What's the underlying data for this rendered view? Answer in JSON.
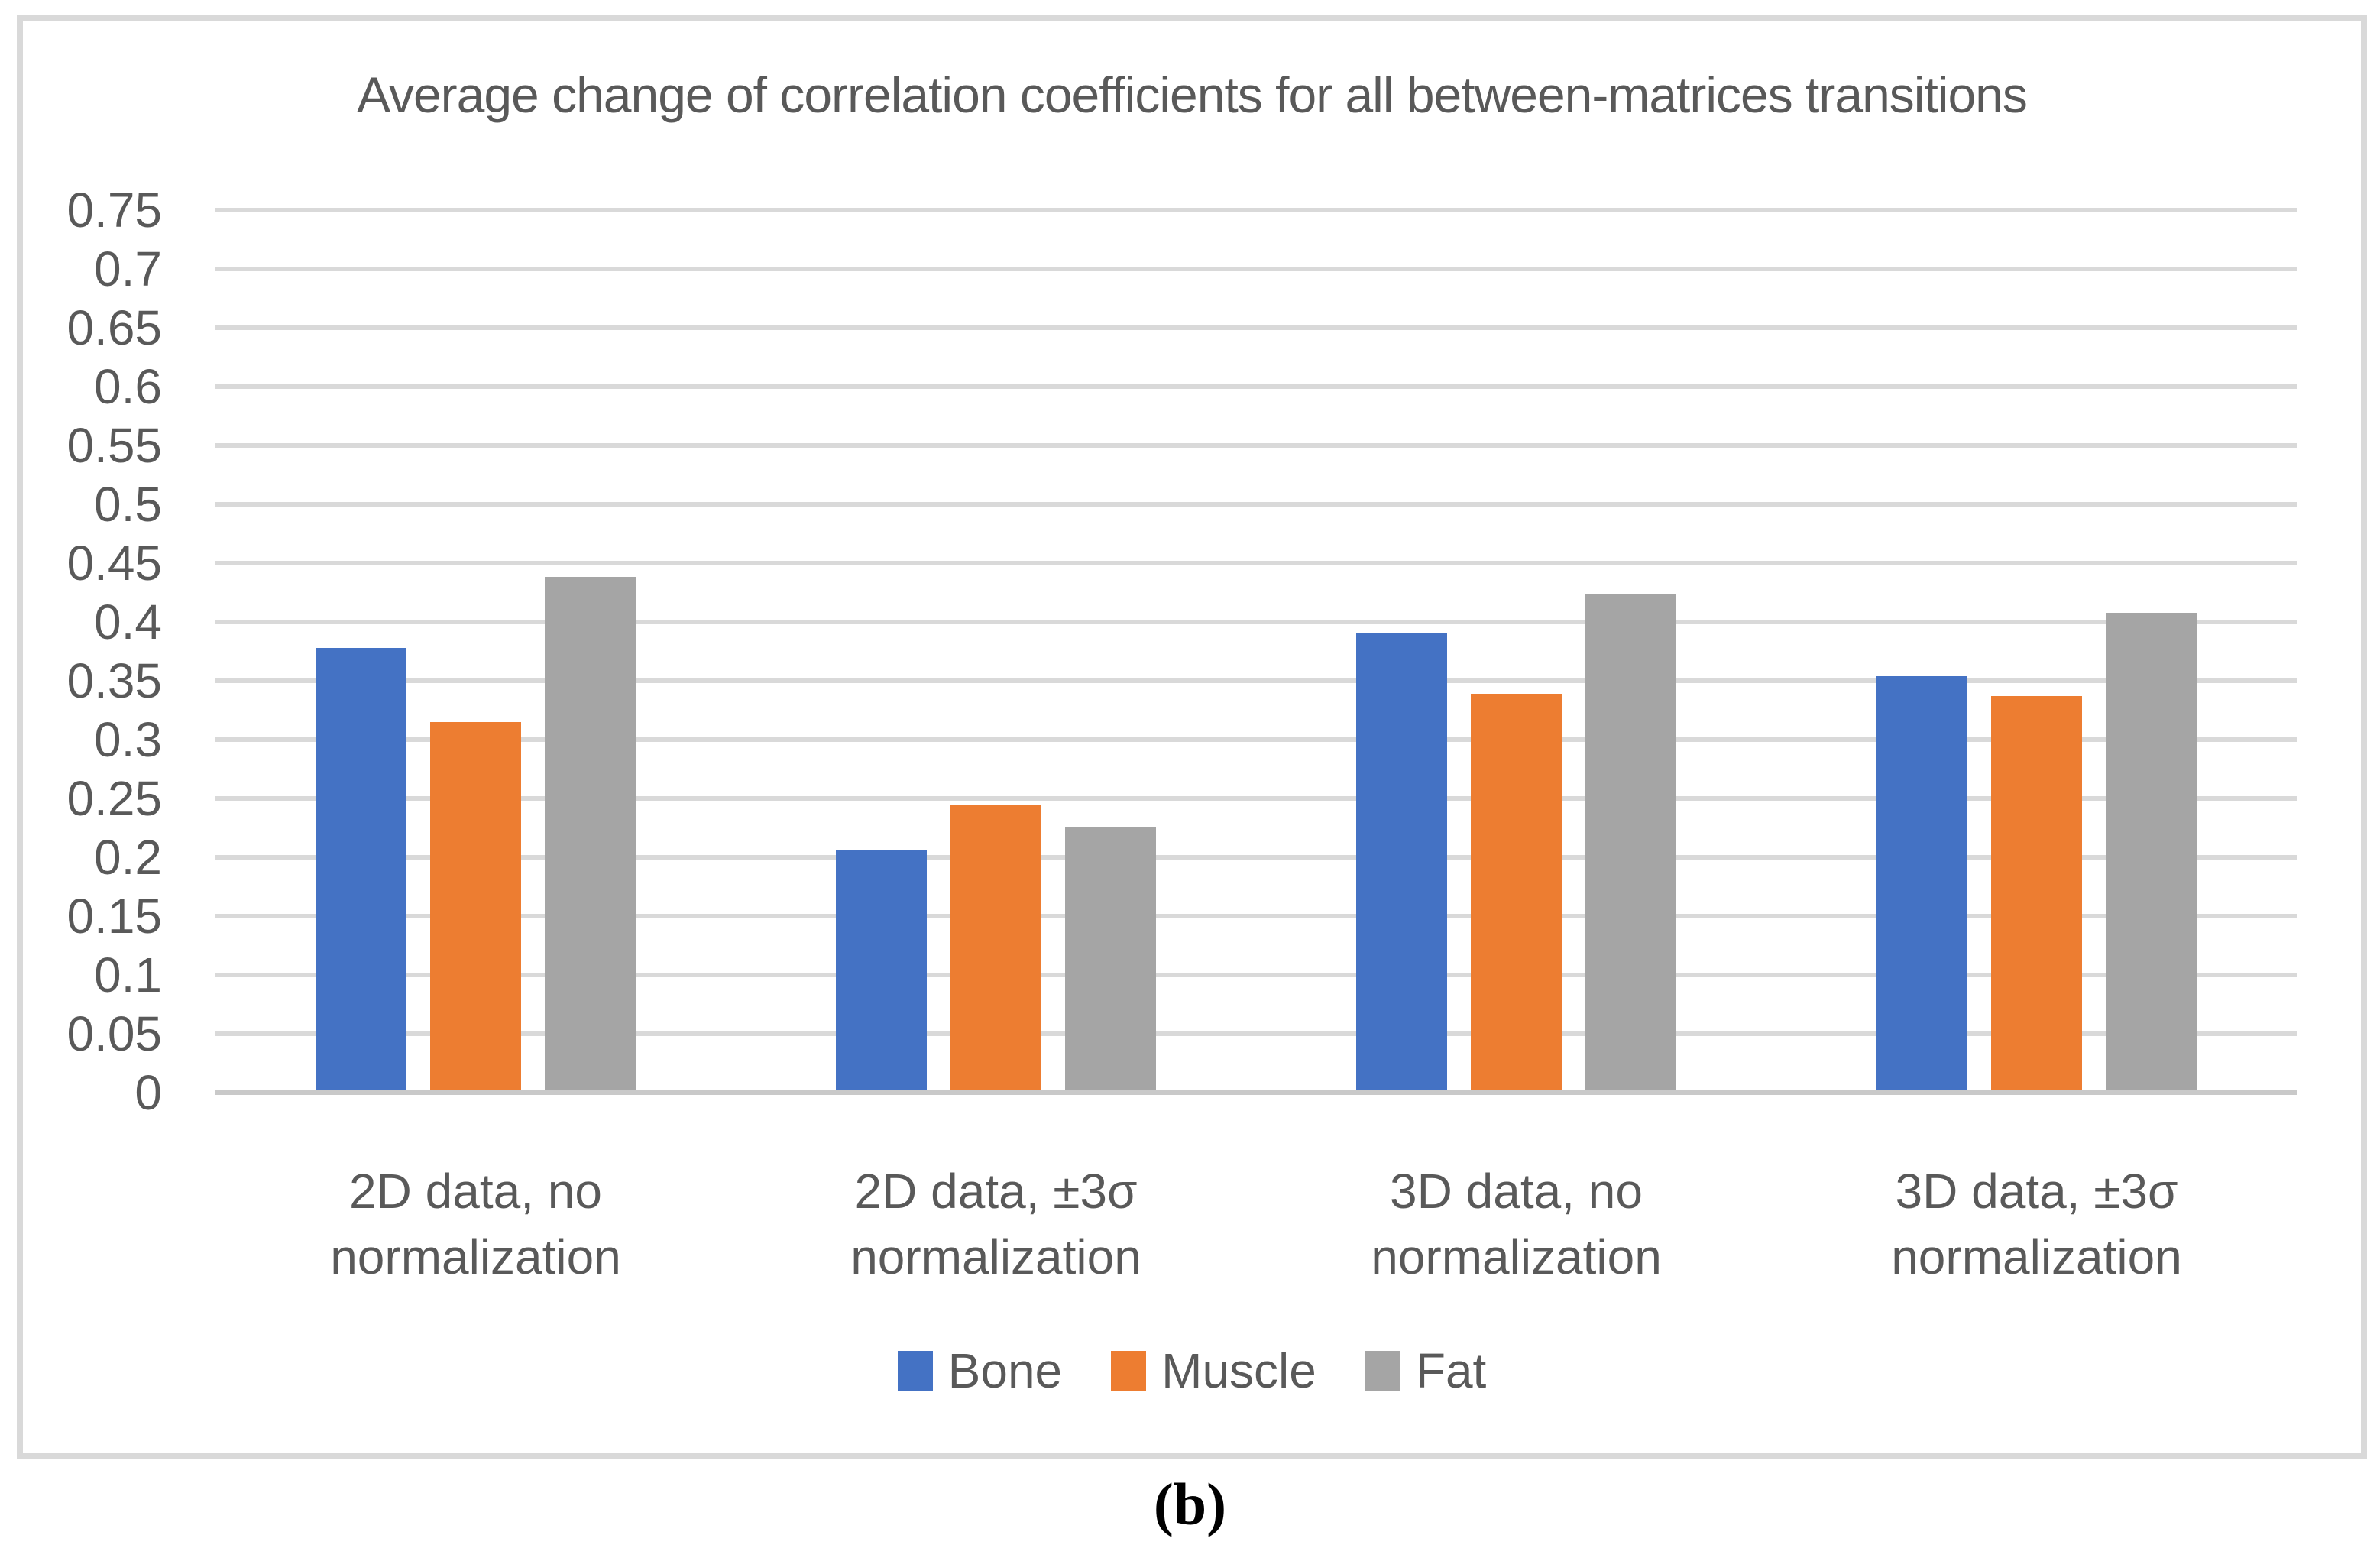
{
  "figure": {
    "caption": "(b)"
  },
  "chart_data": {
    "type": "bar",
    "title": "Average change of correlation coefficients for all between-matrices transitions",
    "categories": [
      "2D data, no\nnormalization",
      "2D data, ±3σ\nnormalization",
      "3D data, no\nnormalization",
      "3D data, ±3σ\nnormalization"
    ],
    "series": [
      {
        "name": "Bone",
        "color": "#4472C4",
        "values": [
          0.378,
          0.206,
          0.39,
          0.354
        ]
      },
      {
        "name": "Muscle",
        "color": "#ED7D31",
        "values": [
          0.315,
          0.244,
          0.339,
          0.337
        ]
      },
      {
        "name": "Fat",
        "color": "#A5A5A5",
        "values": [
          0.438,
          0.226,
          0.424,
          0.408
        ]
      }
    ],
    "ylim": [
      0,
      0.75
    ],
    "ytick_step": 0.05,
    "ytick_labels": [
      "0",
      "0.05",
      "0.1",
      "0.15",
      "0.2",
      "0.25",
      "0.3",
      "0.35",
      "0.4",
      "0.45",
      "0.5",
      "0.55",
      "0.6",
      "0.65",
      "0.7",
      "0.75"
    ],
    "grid": true,
    "legend_position": "bottom",
    "colors": {
      "text": "#595959",
      "gridline": "#D9D9D9",
      "axis_line": "#C9C9C9",
      "frame_border": "#D9D9D9",
      "background": "#FFFFFF"
    }
  }
}
